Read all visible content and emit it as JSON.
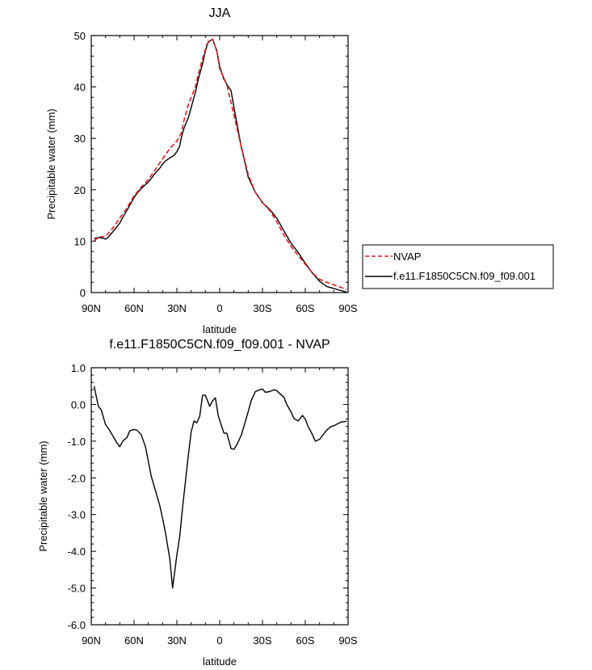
{
  "chart_data": [
    {
      "type": "line",
      "title": "JJA",
      "xlabel": "latitude",
      "ylabel": "Precipitable water (mm)",
      "xlim": [
        90,
        -90
      ],
      "ylim": [
        0,
        50
      ],
      "x_ticks": [
        {
          "value": 90,
          "label": "90N"
        },
        {
          "value": 60,
          "label": "60N"
        },
        {
          "value": 30,
          "label": "30N"
        },
        {
          "value": 0,
          "label": "0"
        },
        {
          "value": -30,
          "label": "30S"
        },
        {
          "value": -60,
          "label": "60S"
        },
        {
          "value": -90,
          "label": "90S"
        }
      ],
      "y_ticks": [
        {
          "value": 0,
          "label": "0"
        },
        {
          "value": 10,
          "label": "10"
        },
        {
          "value": 20,
          "label": "20"
        },
        {
          "value": 30,
          "label": "30"
        },
        {
          "value": 40,
          "label": "40"
        },
        {
          "value": 50,
          "label": "50"
        }
      ],
      "legend_position": "right, outside plot",
      "series": [
        {
          "name": "NVAP",
          "color": "#e41a1c",
          "dash": "dashed",
          "x": [
            88,
            85,
            80,
            75,
            70,
            65,
            60,
            55,
            50,
            45,
            40,
            35,
            30,
            27,
            25,
            22,
            20,
            17,
            15,
            12,
            10,
            9,
            7,
            5,
            2,
            0,
            -5,
            -10,
            -15,
            -20,
            -25,
            -30,
            -35,
            -40,
            -45,
            -50,
            -55,
            -60,
            -65,
            -70,
            -75,
            -80,
            -85,
            -89
          ],
          "y": [
            10.0,
            10.8,
            10.9,
            12.5,
            14.5,
            16.5,
            18.8,
            20.5,
            22.0,
            24.0,
            26.0,
            28.0,
            29.5,
            31.0,
            33.5,
            36.5,
            38.0,
            40.0,
            42.5,
            45.5,
            47.3,
            48.3,
            49.0,
            49.3,
            47.0,
            43.5,
            40.5,
            34.5,
            28.5,
            23.0,
            19.5,
            17.5,
            16.0,
            13.8,
            11.2,
            9.0,
            7.2,
            5.5,
            3.8,
            2.6,
            2.0,
            1.5,
            1.0,
            0.6
          ]
        },
        {
          "name": "f.e11.F1850C5CN.f09_f09.001",
          "color": "#000000",
          "dash": "solid",
          "x": [
            88,
            85,
            82,
            80,
            78,
            75,
            72,
            70,
            68,
            65,
            62,
            60,
            58,
            55,
            52,
            50,
            48,
            45,
            42,
            40,
            38,
            35,
            32,
            30,
            28,
            27,
            25,
            22,
            20,
            17,
            15,
            12,
            10,
            8,
            6,
            5,
            2,
            0,
            -3,
            -5,
            -8,
            -10,
            -15,
            -20,
            -25,
            -30,
            -35,
            -40,
            -45,
            -50,
            -55,
            -60,
            -65,
            -70,
            -73,
            -75,
            -80,
            -85,
            -89
          ],
          "y": [
            10.5,
            10.7,
            10.6,
            10.4,
            10.8,
            11.8,
            12.8,
            13.5,
            14.6,
            16.0,
            17.5,
            18.5,
            19.3,
            20.2,
            21.0,
            21.5,
            22.2,
            23.3,
            24.2,
            25.0,
            25.6,
            26.2,
            26.7,
            27.4,
            28.5,
            30.0,
            32.0,
            34.0,
            36.0,
            39.0,
            41.5,
            44.5,
            47.0,
            48.8,
            49.1,
            49.3,
            47.0,
            44.0,
            41.5,
            40.5,
            39.3,
            36.0,
            28.5,
            22.5,
            19.5,
            17.5,
            16.2,
            14.5,
            12.0,
            9.6,
            7.8,
            5.7,
            3.8,
            2.2,
            1.6,
            1.2,
            0.8,
            0.4,
            0.1
          ]
        }
      ]
    },
    {
      "type": "line",
      "title": "f.e11.F1850C5CN.f09_f09.001 - NVAP",
      "xlabel": "latitude",
      "ylabel": "Precipitable water (mm)",
      "xlim": [
        90,
        -90
      ],
      "ylim": [
        -6.0,
        1.0
      ],
      "x_ticks": [
        {
          "value": 90,
          "label": "90N"
        },
        {
          "value": 60,
          "label": "60N"
        },
        {
          "value": 30,
          "label": "30N"
        },
        {
          "value": 0,
          "label": "0"
        },
        {
          "value": -30,
          "label": "30S"
        },
        {
          "value": -60,
          "label": "60S"
        },
        {
          "value": -90,
          "label": "90S"
        }
      ],
      "y_ticks": [
        {
          "value": 1.0,
          "label": "1.0"
        },
        {
          "value": 0.0,
          "label": "0.0"
        },
        {
          "value": -1.0,
          "label": "-1.0"
        },
        {
          "value": -2.0,
          "label": "-2.0"
        },
        {
          "value": -3.0,
          "label": "-3.0"
        },
        {
          "value": -4.0,
          "label": "-4.0"
        },
        {
          "value": -5.0,
          "label": "-5.0"
        },
        {
          "value": -6.0,
          "label": "-6.0"
        }
      ],
      "series": [
        {
          "color": "#000000",
          "dash": "solid",
          "x": [
            88,
            85,
            83,
            80,
            78,
            75,
            72,
            70,
            68,
            65,
            63,
            60,
            58,
            55,
            52,
            50,
            48,
            45,
            42,
            40,
            38,
            35,
            33,
            30,
            28,
            26,
            24,
            22,
            20,
            18,
            16,
            14,
            12,
            10,
            8,
            7,
            5,
            3,
            1,
            -1,
            -3,
            -5,
            -8,
            -10,
            -12,
            -15,
            -17,
            -20,
            -22,
            -25,
            -28,
            -30,
            -32,
            -35,
            -38,
            -40,
            -42,
            -45,
            -47,
            -50,
            -52,
            -55,
            -58,
            -60,
            -62,
            -65,
            -67,
            -70,
            -72,
            -75,
            -78,
            -80,
            -83,
            -85,
            -89
          ],
          "y": [
            0.5,
            -0.05,
            -0.15,
            -0.55,
            -0.65,
            -0.85,
            -1.05,
            -1.15,
            -1.0,
            -0.9,
            -0.72,
            -0.68,
            -0.7,
            -0.82,
            -1.15,
            -1.55,
            -1.95,
            -2.35,
            -2.75,
            -3.1,
            -3.5,
            -4.2,
            -5.0,
            -4.1,
            -3.6,
            -2.8,
            -2.1,
            -1.4,
            -0.75,
            -0.45,
            -0.5,
            -0.32,
            0.25,
            0.25,
            0.05,
            -0.05,
            0.1,
            0.18,
            -0.3,
            -0.55,
            -0.78,
            -0.78,
            -1.2,
            -1.22,
            -1.1,
            -0.85,
            -0.6,
            -0.2,
            0.1,
            0.35,
            0.4,
            0.42,
            0.33,
            0.35,
            0.4,
            0.38,
            0.3,
            0.2,
            0.0,
            -0.2,
            -0.38,
            -0.45,
            -0.3,
            -0.4,
            -0.6,
            -0.82,
            -1.0,
            -0.95,
            -0.85,
            -0.7,
            -0.6,
            -0.58,
            -0.52,
            -0.48,
            -0.46
          ]
        }
      ]
    }
  ]
}
